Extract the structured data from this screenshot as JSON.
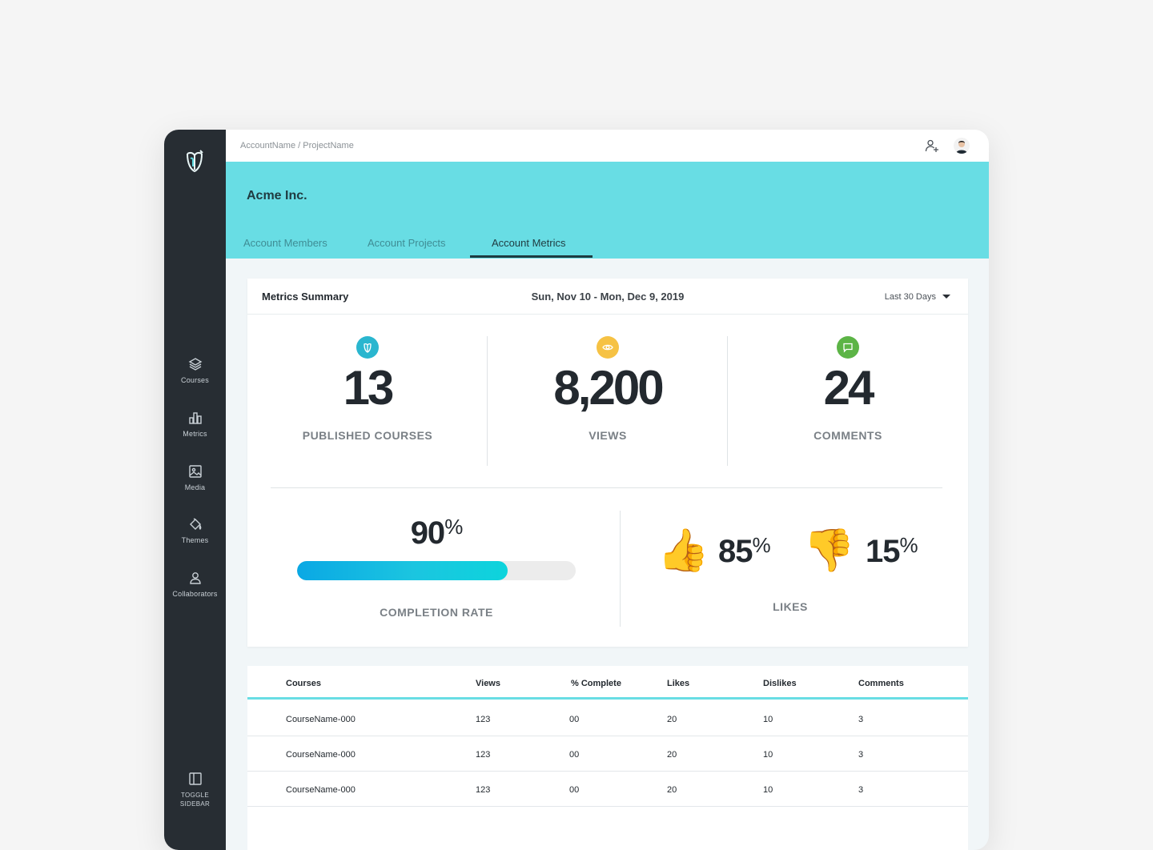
{
  "topbar": {
    "breadcrumb": "AccountName / ProjectName"
  },
  "header": {
    "account_name": "Acme Inc.",
    "tabs": [
      "Account Members",
      "Account Projects",
      "Account Metrics"
    ],
    "active_tab": "Account Metrics"
  },
  "sidebar": {
    "items": [
      {
        "label": "Courses",
        "icon": "layers-icon"
      },
      {
        "label": "Metrics",
        "icon": "bar-chart-icon"
      },
      {
        "label": "Media",
        "icon": "image-icon"
      },
      {
        "label": "Themes",
        "icon": "paint-bucket-icon"
      },
      {
        "label": "Collaborators",
        "icon": "users-icon"
      }
    ],
    "toggle_label": "TOGGLE SIDEBAR"
  },
  "metrics": {
    "title": "Metrics Summary",
    "date_range": "Sun, Nov 10 - Mon, Dec 9, 2019",
    "period": "Last 30 Days",
    "stats": [
      {
        "value": "13",
        "label": "PUBLISHED COURSES",
        "icon": "book-icon",
        "color": "#2ab6cf"
      },
      {
        "value": "8,200",
        "label": "VIEWS",
        "icon": "eye-icon",
        "color": "#f6c244"
      },
      {
        "value": "24",
        "label": "COMMENTS",
        "icon": "comment-icon",
        "color": "#5cb446"
      }
    ],
    "completion": {
      "value": "90",
      "unit": "%",
      "label": "COMPLETION RATE",
      "fraction": 0.9
    },
    "likes": {
      "up": "85",
      "down": "15",
      "unit": "%",
      "label": "LIKES"
    }
  },
  "table": {
    "columns": [
      "Courses",
      "Views",
      "% Complete",
      "Likes",
      "Dislikes",
      "Comments"
    ],
    "rows": [
      [
        "CourseName-000",
        "123",
        "00",
        "20",
        "10",
        "3"
      ],
      [
        "CourseName-000",
        "123",
        "00",
        "20",
        "10",
        "3"
      ],
      [
        "CourseName-000",
        "123",
        "00",
        "20",
        "10",
        "3"
      ]
    ]
  }
}
